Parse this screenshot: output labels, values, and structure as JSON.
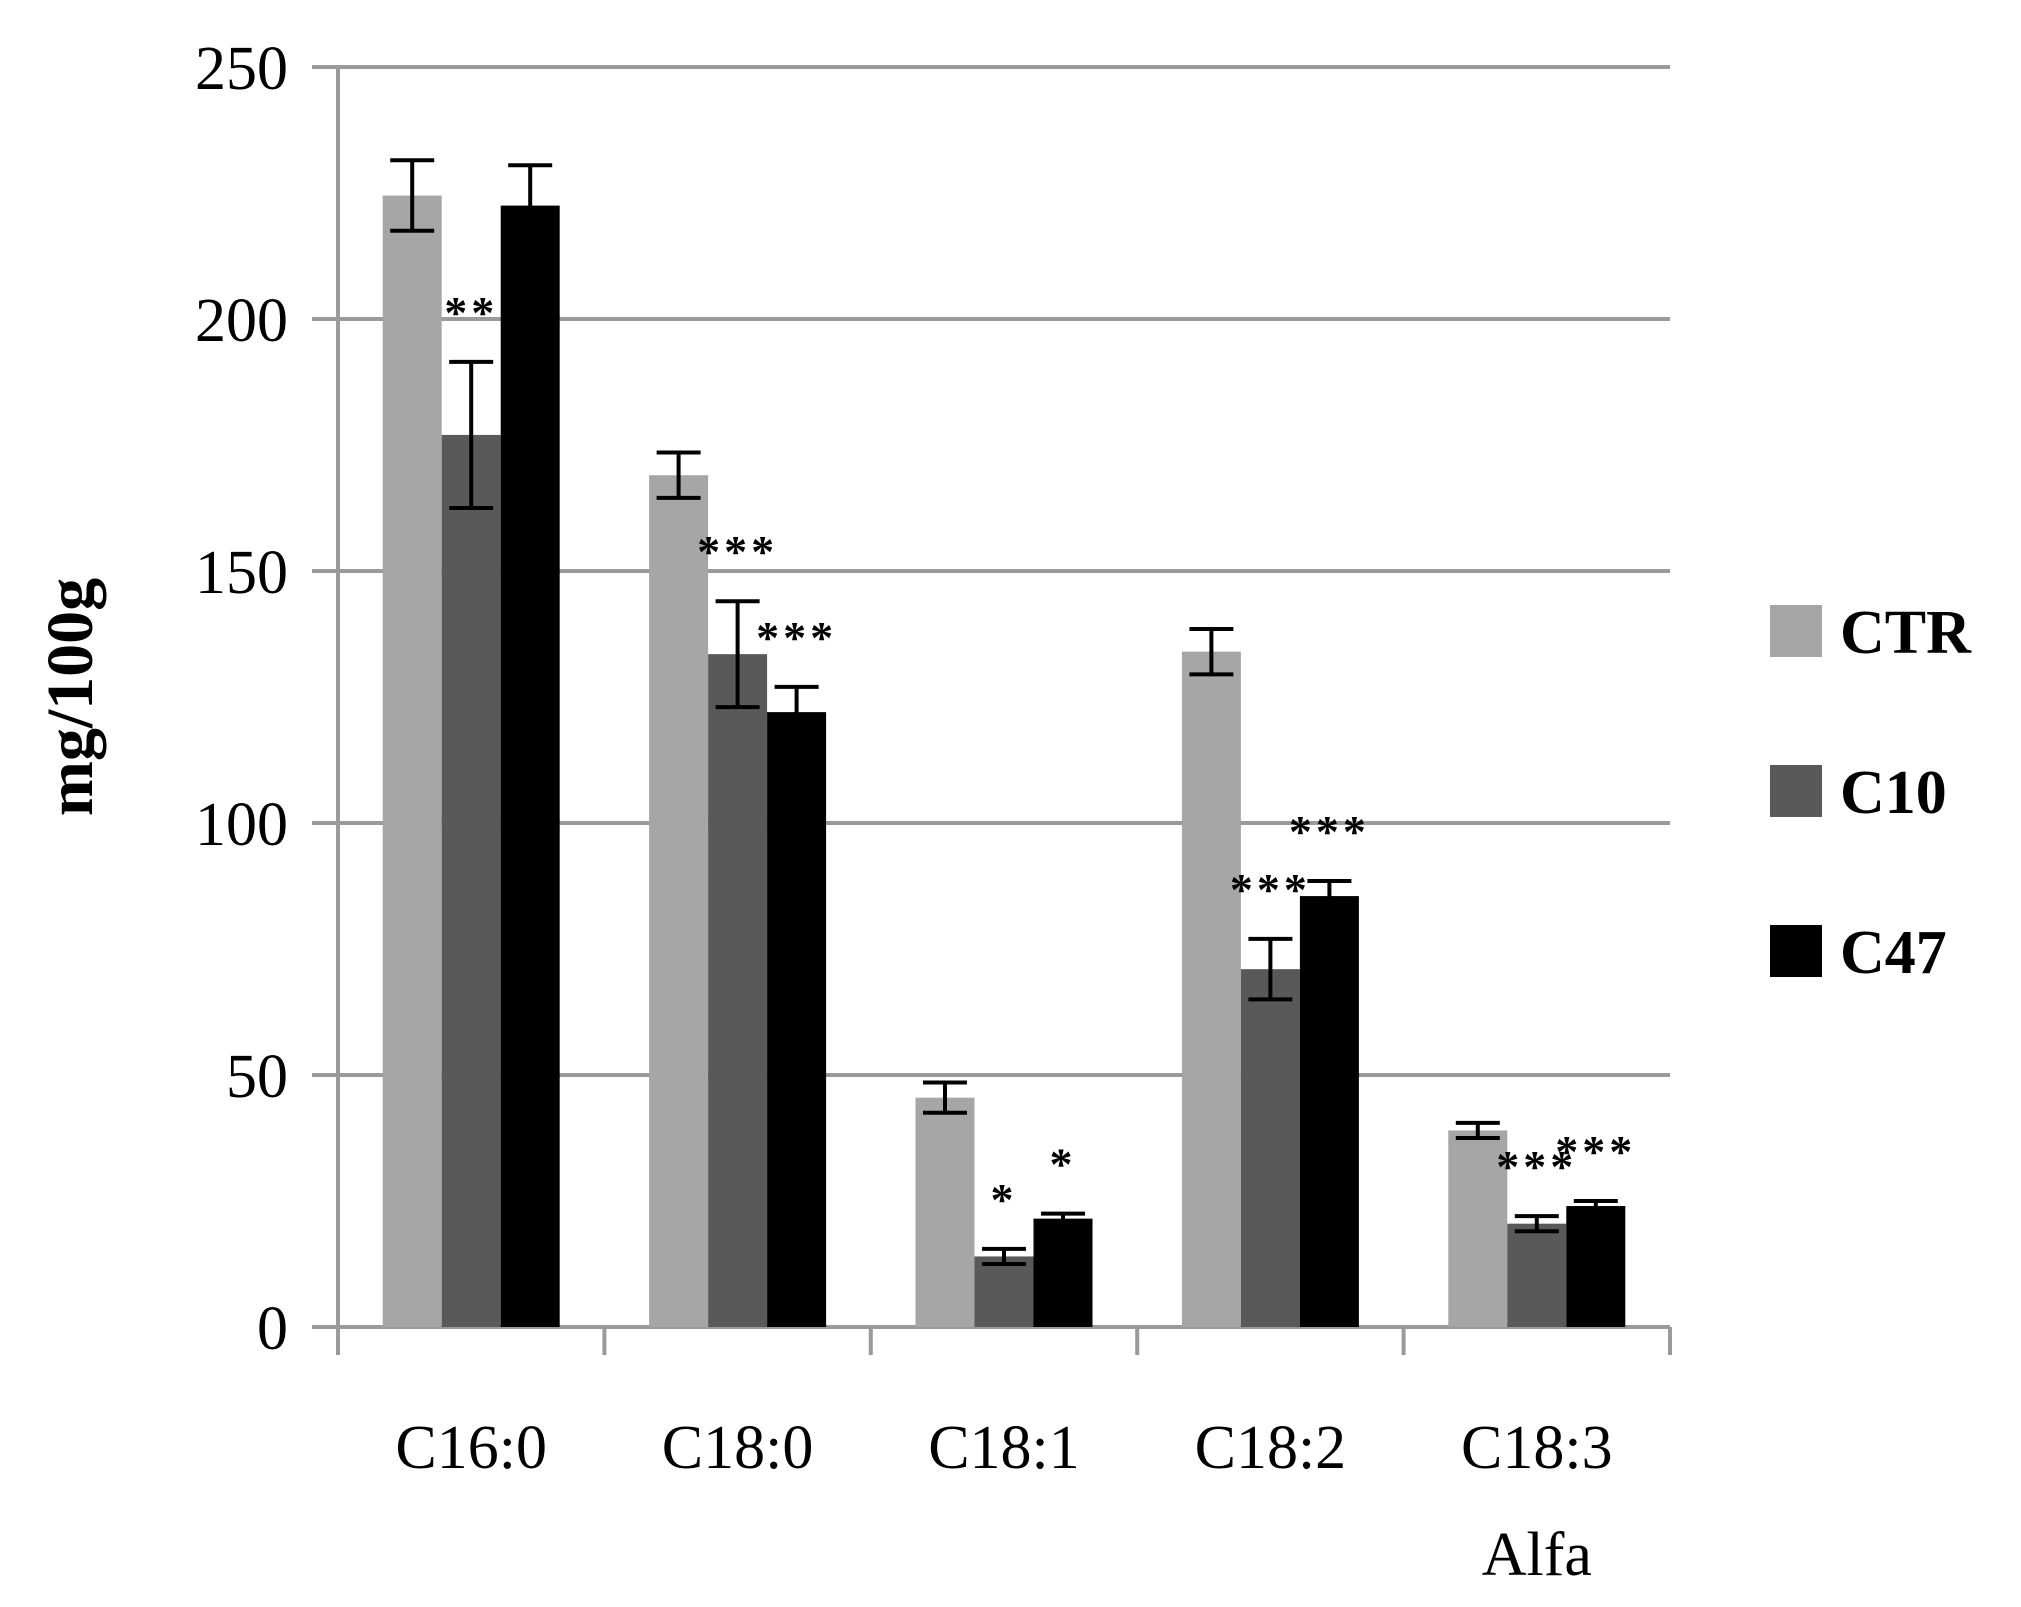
{
  "chart_data": {
    "type": "bar",
    "title": "",
    "xlabel": "",
    "ylabel": "mg/100g",
    "ylim": [
      0,
      250
    ],
    "yticks": [
      0,
      50,
      100,
      150,
      200,
      250
    ],
    "grid": true,
    "legend_position": "right",
    "categories": [
      {
        "label": "C16:0",
        "sublabel": ""
      },
      {
        "label": "C18:0",
        "sublabel": ""
      },
      {
        "label": "C18:1",
        "sublabel": ""
      },
      {
        "label": "C18:2",
        "sublabel": ""
      },
      {
        "label": "C18:3",
        "sublabel": "Alfa"
      }
    ],
    "series": [
      {
        "name": "CTR",
        "color": "#a6a6a6",
        "values": [
          224.5,
          169,
          45.5,
          134,
          39
        ],
        "errors": [
          7,
          4.5,
          3,
          4.5,
          1.5
        ],
        "significance": [
          "",
          "",
          "",
          "",
          ""
        ]
      },
      {
        "name": "C10",
        "color": "#595959",
        "values": [
          177,
          133.5,
          14,
          71,
          20.5
        ],
        "errors": [
          14.5,
          10.5,
          1.5,
          6,
          1.5
        ],
        "significance": [
          "**",
          "***",
          "*",
          "***",
          "***"
        ]
      },
      {
        "name": "C47",
        "color": "#000000",
        "values": [
          222.5,
          122,
          21.5,
          85.5,
          24
        ],
        "errors": [
          8,
          5,
          1,
          3,
          1
        ],
        "significance": [
          "",
          "***",
          "*",
          "***",
          "***"
        ]
      }
    ]
  }
}
